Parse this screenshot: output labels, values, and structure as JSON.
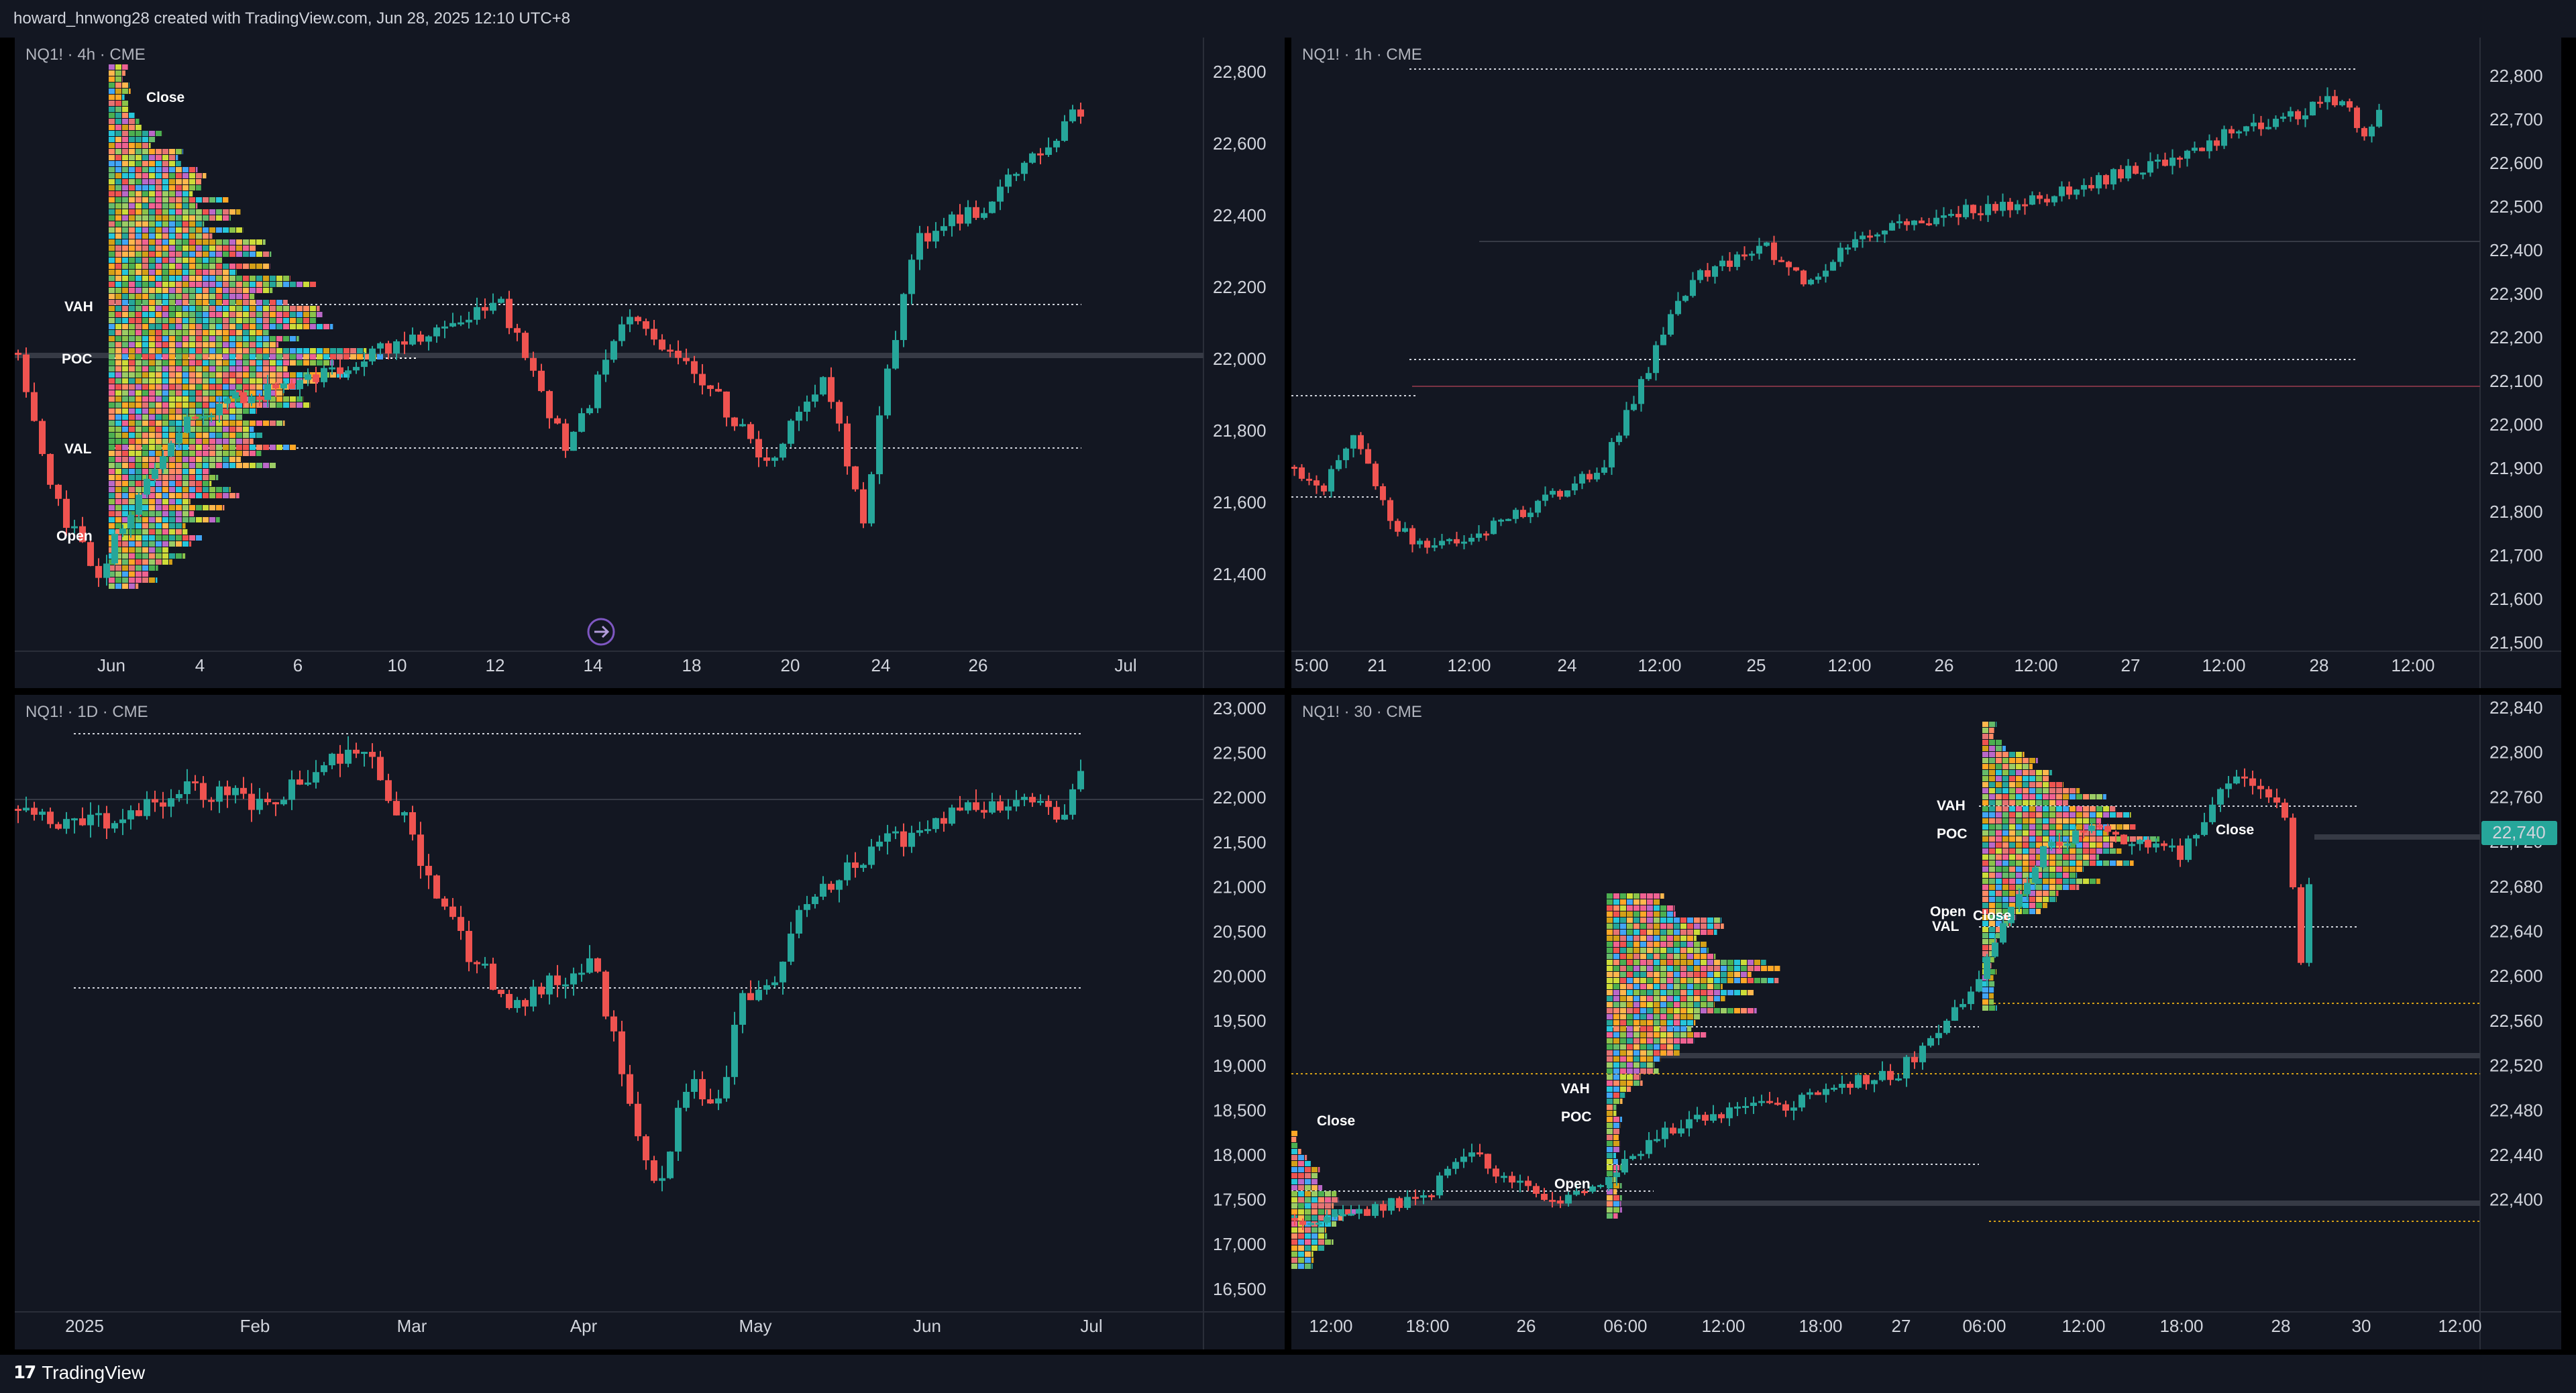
{
  "header": {
    "credit": "howard_hnwong28 created with TradingView.com, Jun 28, 2025 12:10 UTC+8"
  },
  "footer": {
    "logo_mark": "17",
    "logo_text": "TradingView"
  },
  "colors": {
    "up": "#26a69a",
    "down": "#ef5350",
    "bg": "#131722",
    "grid": "#1e222d",
    "text": "#d1d4dc",
    "price_tag": "#26a69a"
  },
  "icons": {
    "replay": "replay-arrow-icon",
    "logo": "tradingview-logo-icon"
  },
  "panels": [
    {
      "title": "NQ1! · 4h · CME",
      "price_axis": [
        "22,800",
        "22,600",
        "22,400",
        "22,200",
        "22,000",
        "21,800",
        "21,600",
        "21,400"
      ],
      "time_axis": [
        "Jun",
        "4",
        "6",
        "10",
        "12",
        "14",
        "18",
        "20",
        "24",
        "26",
        "Jul"
      ],
      "labels": {
        "vah": "VAH",
        "poc": "POC",
        "val": "VAL",
        "open": "Open",
        "close": "Close"
      }
    },
    {
      "title": "NQ1! · 1h · CME",
      "price_axis": [
        "22,800",
        "22,700",
        "22,600",
        "22,500",
        "22,400",
        "22,300",
        "22,200",
        "22,100",
        "22,000",
        "21,900",
        "21,800",
        "21,700",
        "21,600",
        "21,500"
      ],
      "time_axis": [
        "5:00",
        "21",
        "12:00",
        "24",
        "12:00",
        "25",
        "12:00",
        "26",
        "12:00",
        "27",
        "12:00",
        "28",
        "12:00"
      ]
    },
    {
      "title": "NQ1! · 1D · CME",
      "price_axis": [
        "23,000",
        "22,500",
        "22,000",
        "21,500",
        "21,000",
        "20,500",
        "20,000",
        "19,500",
        "19,000",
        "18,500",
        "18,000",
        "17,500",
        "17,000",
        "16,500"
      ],
      "time_axis": [
        "2025",
        "Feb",
        "Mar",
        "Apr",
        "May",
        "Jun",
        "Jul"
      ]
    },
    {
      "title": "NQ1! · 30 · CME",
      "price_axis": [
        "22,840",
        "22,800",
        "22,760",
        "22,720",
        "22,680",
        "22,640",
        "22,600",
        "22,560",
        "22,520",
        "22,480",
        "22,440",
        "22,400"
      ],
      "last_price": "22,740",
      "time_axis": [
        "12:00",
        "18:00",
        "26",
        "06:00",
        "12:00",
        "18:00",
        "27",
        "06:00",
        "12:00",
        "18:00",
        "28",
        "30",
        "12:00"
      ],
      "labels": {
        "vah1": "VAH",
        "poc1": "POC",
        "open1": "Open",
        "close1": "Close",
        "vah2": "VAH",
        "poc2": "POC",
        "open2": "Open",
        "val2": "VAL",
        "close2": "Close",
        "close0": "Close"
      }
    }
  ]
}
